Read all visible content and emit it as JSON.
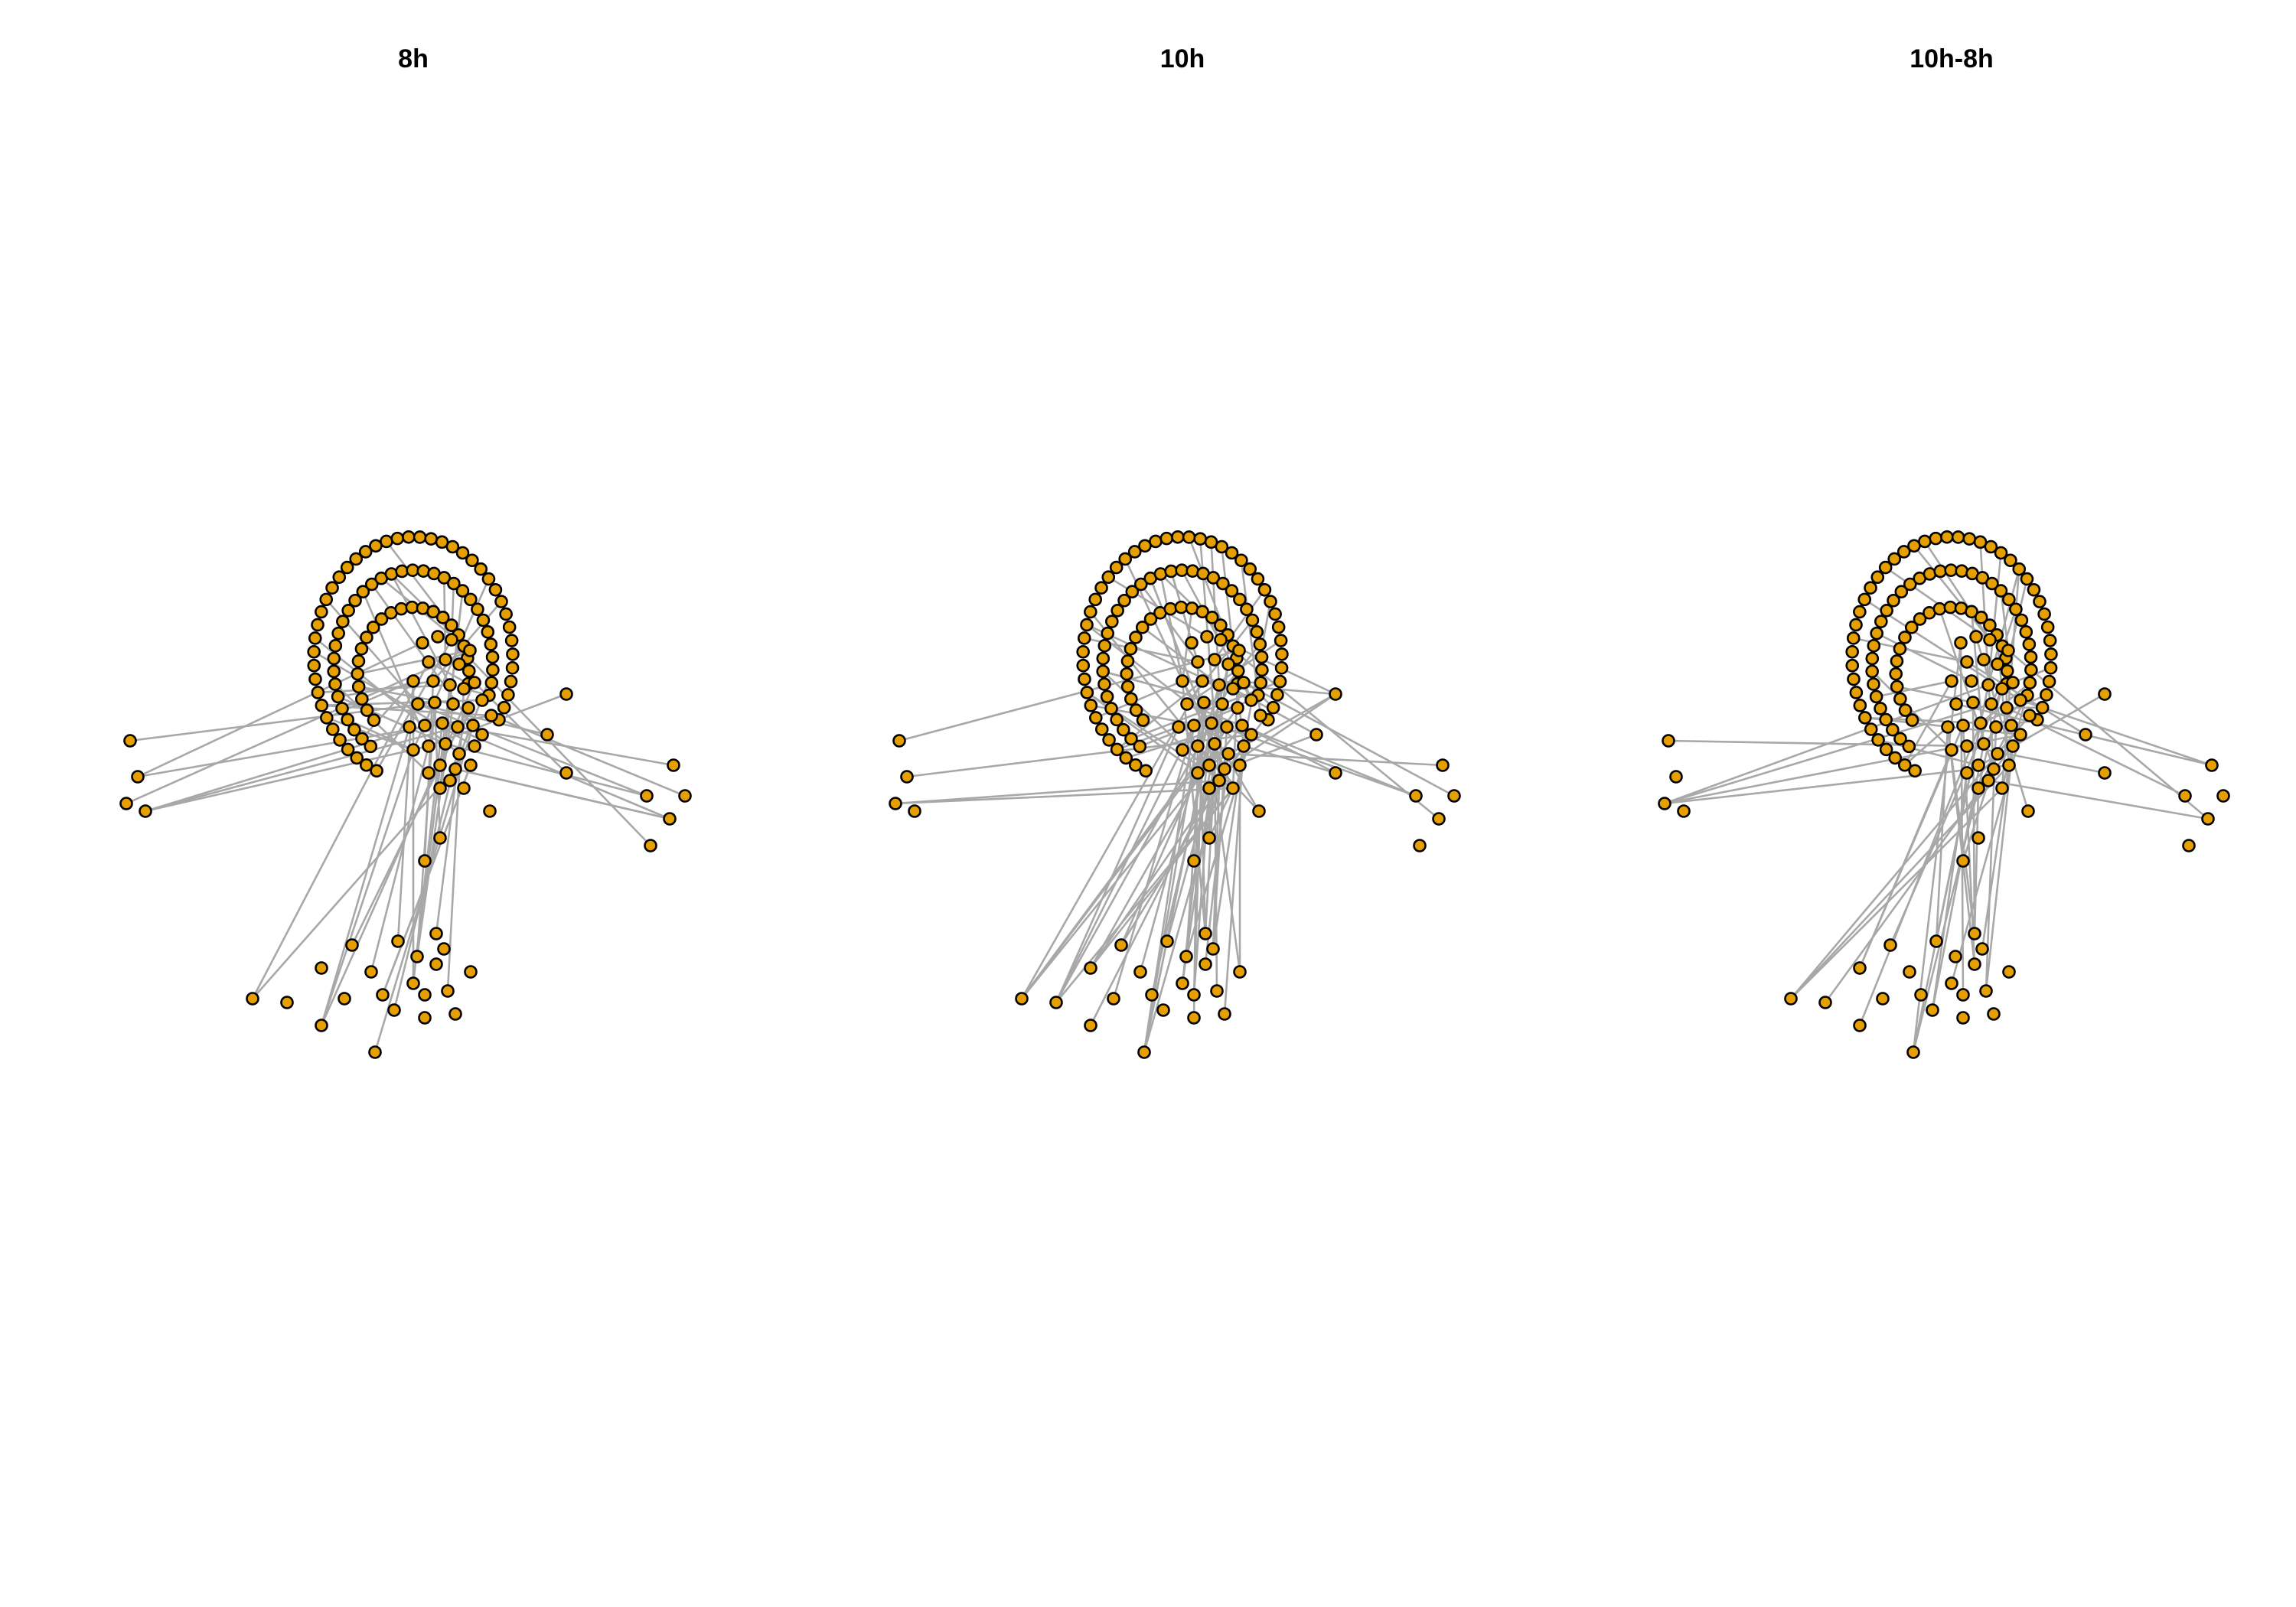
{
  "panels": [
    {
      "id": "8h",
      "title": "8h"
    },
    {
      "id": "10h",
      "title": "10h"
    },
    {
      "id": "10h-8h",
      "title": "10h-8h"
    }
  ],
  "colors": {
    "node_fill": "#e59f00",
    "node_stroke": "#000000",
    "edge": "#a8a8a8",
    "background": "#ffffff"
  }
}
